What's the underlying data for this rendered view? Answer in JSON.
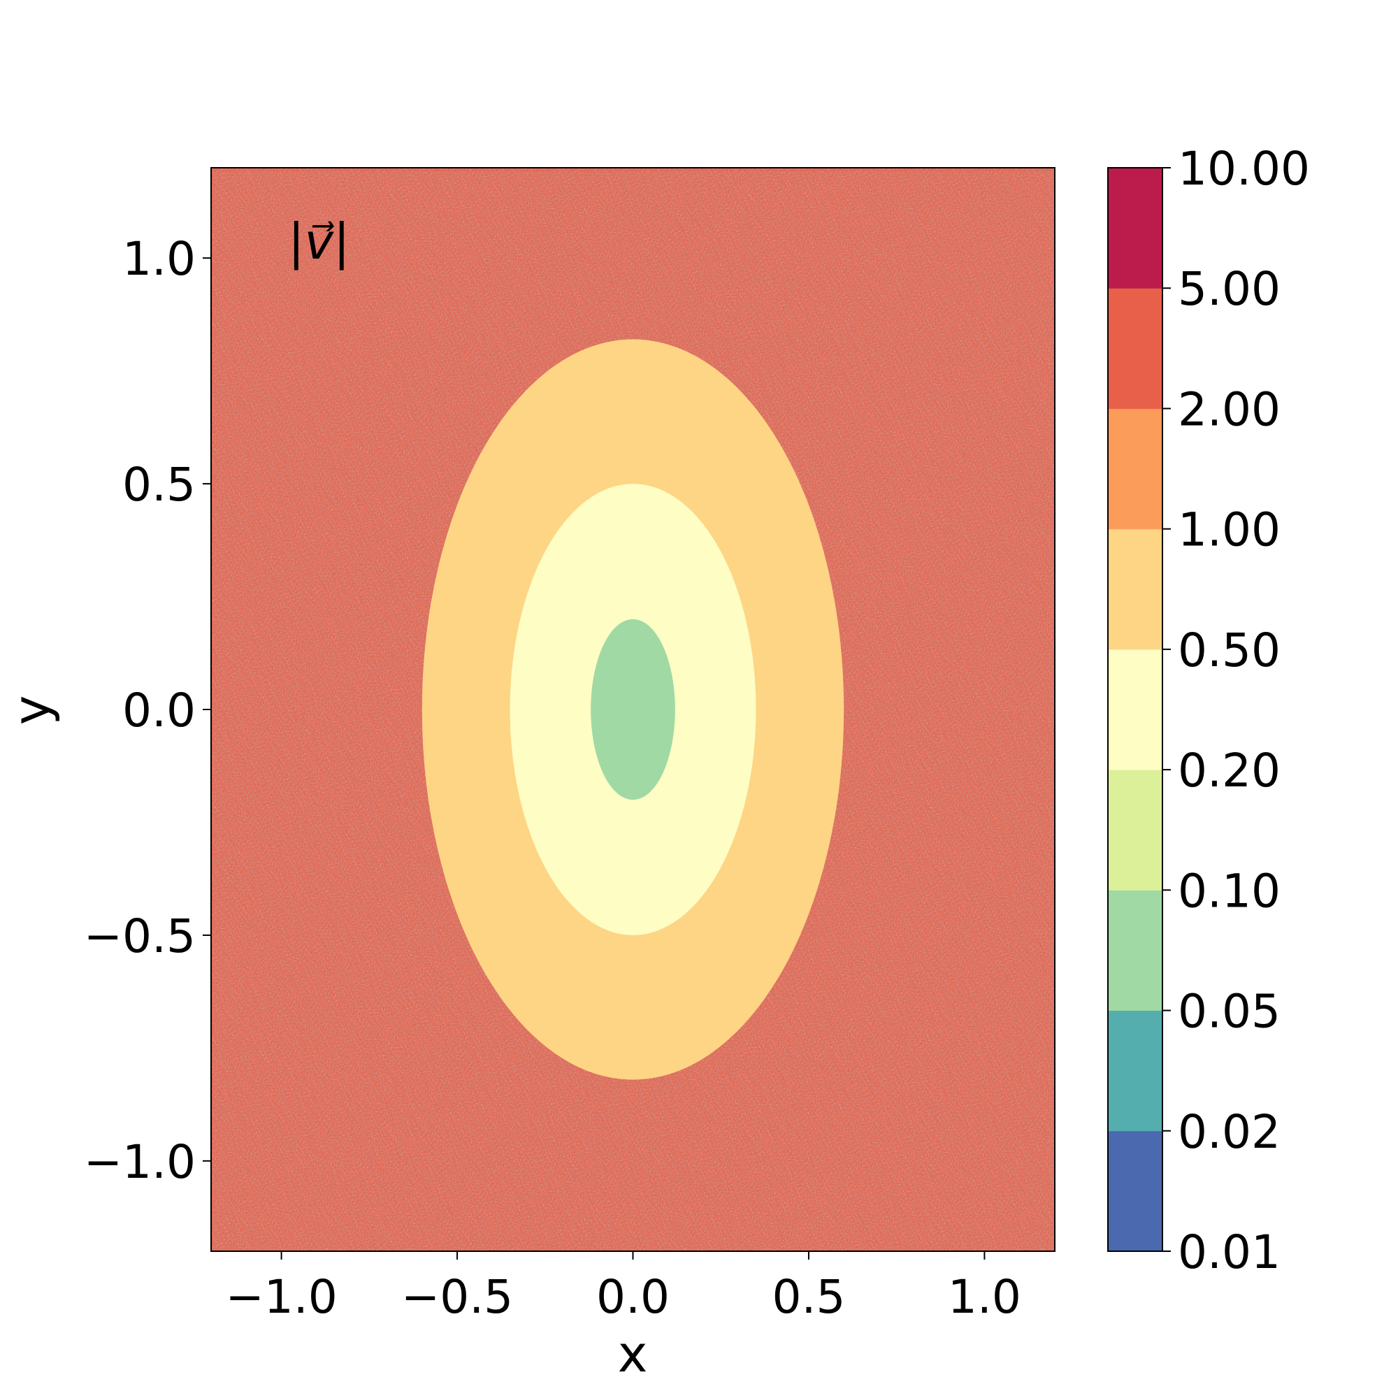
{
  "chart_data": {
    "type": "heatmap",
    "quantity_label": "|v⃗|",
    "xlabel": "x",
    "ylabel": "y",
    "xlim": [
      -1.2,
      1.2
    ],
    "ylim": [
      -1.2,
      1.2
    ],
    "xticks": [
      {
        "value": -1.0,
        "label": "−1.0"
      },
      {
        "value": -0.5,
        "label": "−0.5"
      },
      {
        "value": 0.0,
        "label": "0.0"
      },
      {
        "value": 0.5,
        "label": "0.5"
      },
      {
        "value": 1.0,
        "label": "1.0"
      }
    ],
    "yticks": [
      {
        "value": 1.0,
        "label": "1.0"
      },
      {
        "value": 0.5,
        "label": "0.5"
      },
      {
        "value": 0.0,
        "label": "0.0"
      },
      {
        "value": -0.5,
        "label": "−0.5"
      },
      {
        "value": -1.0,
        "label": "−1.0"
      }
    ],
    "colorbar": {
      "scale": "log",
      "levels": [
        0.01,
        0.02,
        0.05,
        0.1,
        0.2,
        0.5,
        1.0,
        2.0,
        5.0,
        10.0
      ],
      "tick_labels": [
        "0.01",
        "0.02",
        "0.05",
        "0.10",
        "0.20",
        "0.50",
        "1.00",
        "2.00",
        "5.00",
        "10.00"
      ],
      "colors": [
        "#4a69af",
        "#55aeae",
        "#a0d9a4",
        "#dcf09a",
        "#fdfdc4",
        "#fdd585",
        "#fb9c5a",
        "#e8604a",
        "#bb1c4b"
      ]
    },
    "field_description_values": {
      "background_level": 3.0,
      "outer_disk_level": 0.7,
      "inner_disk_level": 0.35,
      "core_level": 0.08,
      "outer_disk_radius": [
        0.6,
        0.82
      ],
      "inner_disk_radius": [
        0.35,
        0.5
      ],
      "core_radius": [
        0.12,
        0.2
      ]
    }
  }
}
